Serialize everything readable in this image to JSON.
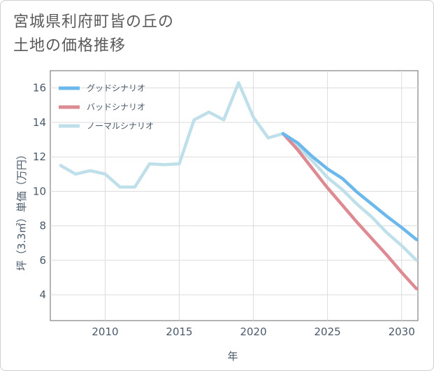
{
  "title": "宮城県利府町皆の丘の\n土地の価格推移",
  "chart_data": {
    "type": "line",
    "xlabel": "年",
    "ylabel": "坪（3.3㎡）単価（万円）",
    "xlim": [
      2006.3,
      2031.1
    ],
    "ylim": [
      2.5,
      17
    ],
    "xticks": [
      2010,
      2015,
      2020,
      2025,
      2030
    ],
    "yticks": [
      4,
      6,
      8,
      10,
      12,
      14,
      16
    ],
    "legend_position": "top-left",
    "series": [
      {
        "name": "グッドシナリオ",
        "color": "#6ab8ec",
        "x": [
          2022,
          2023,
          2024,
          2025,
          2026,
          2027,
          2028,
          2029,
          2030,
          2031
        ],
        "y": [
          13.35,
          12.8,
          12.0,
          11.3,
          10.75,
          9.95,
          9.25,
          8.55,
          7.9,
          7.2
        ]
      },
      {
        "name": "バッドシナリオ",
        "color": "#de8a92",
        "x": [
          2022,
          2023,
          2024,
          2025,
          2026,
          2027,
          2028,
          2029,
          2030,
          2031
        ],
        "y": [
          13.35,
          12.4,
          11.3,
          10.2,
          9.2,
          8.2,
          7.25,
          6.3,
          5.3,
          4.35
        ]
      },
      {
        "name": "ノーマルシナリオ",
        "color": "#bfe0ea",
        "x": [
          2007,
          2008,
          2009,
          2010,
          2011,
          2012,
          2013,
          2014,
          2015,
          2016,
          2017,
          2018,
          2019,
          2020,
          2021,
          2022,
          2023,
          2024,
          2025,
          2026,
          2027,
          2028,
          2029,
          2030,
          2031
        ],
        "y": [
          11.5,
          11.0,
          11.2,
          11.0,
          10.25,
          10.25,
          11.6,
          11.55,
          11.6,
          14.15,
          14.6,
          14.15,
          16.3,
          14.3,
          13.1,
          13.35,
          12.6,
          11.75,
          10.8,
          10.1,
          9.25,
          8.5,
          7.6,
          6.85,
          6.0
        ]
      }
    ]
  }
}
